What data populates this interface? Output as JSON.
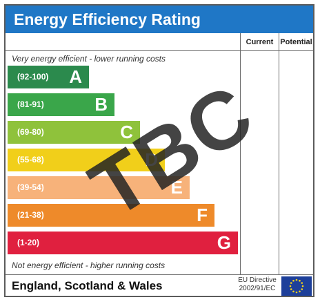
{
  "title": "Energy Efficiency Rating",
  "columns": {
    "current": "Current",
    "potential": "Potential"
  },
  "notes": {
    "top": "Very energy efficient - lower running costs",
    "bottom": "Not energy efficient - higher running costs"
  },
  "bands": [
    {
      "range": "(92-100)",
      "letter": "A",
      "color": "#2b8a4d"
    },
    {
      "range": "(81-91)",
      "letter": "B",
      "color": "#3aa64a"
    },
    {
      "range": "(69-80)",
      "letter": "C",
      "color": "#8fc23b"
    },
    {
      "range": "(55-68)",
      "letter": "D",
      "color": "#f1cf1a"
    },
    {
      "range": "(39-54)",
      "letter": "E",
      "color": "#f7b27a"
    },
    {
      "range": "(21-38)",
      "letter": "F",
      "color": "#ee8a2a"
    },
    {
      "range": "(1-20)",
      "letter": "G",
      "color": "#e0203f"
    }
  ],
  "footer": {
    "region": "England, Scotland & Wales",
    "directive_line1": "EU Directive",
    "directive_line2": "2002/91/EC"
  },
  "overlay": "TBC",
  "colors": {
    "header_bg": "#1f77c6",
    "eu_flag_bg": "#1d3f9a",
    "eu_stars": "#f6d21b"
  },
  "icons": {
    "eu_flag": "eu-flag-icon"
  }
}
